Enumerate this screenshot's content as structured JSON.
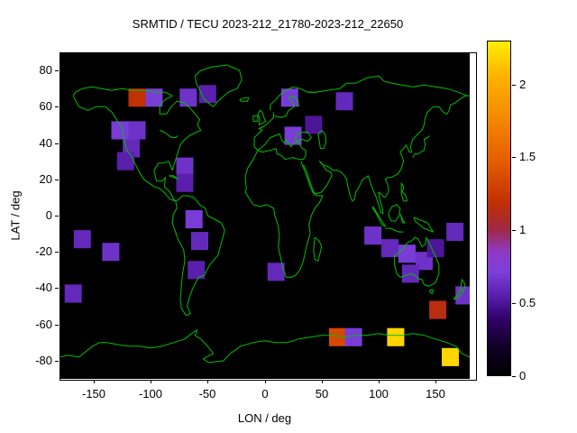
{
  "title": "SRMTID / TECU 2023-212_21780-2023-212_22650",
  "chart_data": {
    "type": "heatmap",
    "title": "SRMTID / TECU 2023-212_21780-2023-212_22650",
    "xlabel": "LON / deg",
    "ylabel": "LAT / deg",
    "xlim": [
      -180,
      180
    ],
    "ylim": [
      -90,
      90
    ],
    "xticks": [
      -150,
      -100,
      -50,
      0,
      50,
      100,
      150
    ],
    "yticks": [
      -80,
      -60,
      -40,
      -20,
      0,
      20,
      40,
      60,
      80
    ],
    "grid": false,
    "background": "#000000",
    "coastline_color": "#00c000",
    "cell_size_deg": {
      "lon": 15,
      "lat": 10
    },
    "colorbar": {
      "min": 0,
      "max": 2.3,
      "ticks": [
        0,
        0.5,
        1,
        1.5,
        2
      ],
      "position": "right"
    },
    "palette_stops": [
      [
        0.0,
        "#000000"
      ],
      [
        0.09,
        "#12002a"
      ],
      [
        0.17,
        "#33006b"
      ],
      [
        0.24,
        "#5a1fae"
      ],
      [
        0.31,
        "#7d3fd9"
      ],
      [
        0.37,
        "#8f39c4"
      ],
      [
        0.44,
        "#a02840"
      ],
      [
        0.52,
        "#c23000"
      ],
      [
        0.65,
        "#e66000"
      ],
      [
        0.8,
        "#f79300"
      ],
      [
        0.9,
        "#ffb300"
      ],
      [
        1.0,
        "#ffef00"
      ]
    ],
    "cells": [
      {
        "lon": -112,
        "lat": 65,
        "tecu": 1.2
      },
      {
        "lon": -97,
        "lat": 65,
        "tecu": 0.7
      },
      {
        "lon": -67,
        "lat": 65,
        "tecu": 0.65
      },
      {
        "lon": -50,
        "lat": 67,
        "tecu": 0.55
      },
      {
        "lon": 22,
        "lat": 65,
        "tecu": 0.7
      },
      {
        "lon": 70,
        "lat": 63,
        "tecu": 0.6
      },
      {
        "lon": -127,
        "lat": 47,
        "tecu": 0.7
      },
      {
        "lon": -112,
        "lat": 47,
        "tecu": 0.65
      },
      {
        "lon": -117,
        "lat": 37,
        "tecu": 0.6
      },
      {
        "lon": -122,
        "lat": 30,
        "tecu": 0.55
      },
      {
        "lon": -70,
        "lat": 27,
        "tecu": 0.65
      },
      {
        "lon": -70,
        "lat": 18,
        "tecu": 0.55
      },
      {
        "lon": 25,
        "lat": 44,
        "tecu": 0.7
      },
      {
        "lon": 43,
        "lat": 50,
        "tecu": 0.5
      },
      {
        "lon": -160,
        "lat": -13,
        "tecu": 0.6
      },
      {
        "lon": -135,
        "lat": -20,
        "tecu": 0.65
      },
      {
        "lon": -62,
        "lat": -2,
        "tecu": 0.7
      },
      {
        "lon": -57,
        "lat": -14,
        "tecu": 0.6
      },
      {
        "lon": -60,
        "lat": -30,
        "tecu": 0.55
      },
      {
        "lon": 10,
        "lat": -31,
        "tecu": 0.6
      },
      {
        "lon": 95,
        "lat": -11,
        "tecu": 0.65
      },
      {
        "lon": 110,
        "lat": -18,
        "tecu": 0.6
      },
      {
        "lon": 125,
        "lat": -21,
        "tecu": 0.7
      },
      {
        "lon": 140,
        "lat": -25,
        "tecu": 0.65
      },
      {
        "lon": 128,
        "lat": -32,
        "tecu": 0.6
      },
      {
        "lon": 150,
        "lat": -18,
        "tecu": 0.5
      },
      {
        "lon": 167,
        "lat": -9,
        "tecu": 0.6
      },
      {
        "lon": 175,
        "lat": -44,
        "tecu": 0.65
      },
      {
        "lon": -168,
        "lat": -43,
        "tecu": 0.6
      },
      {
        "lon": 152,
        "lat": -52,
        "tecu": 1.15
      },
      {
        "lon": 64,
        "lat": -67,
        "tecu": 1.35
      },
      {
        "lon": 78,
        "lat": -67,
        "tecu": 0.7
      },
      {
        "lon": 115,
        "lat": -67,
        "tecu": 2.2
      },
      {
        "lon": 163,
        "lat": -78,
        "tecu": 2.2
      }
    ]
  }
}
